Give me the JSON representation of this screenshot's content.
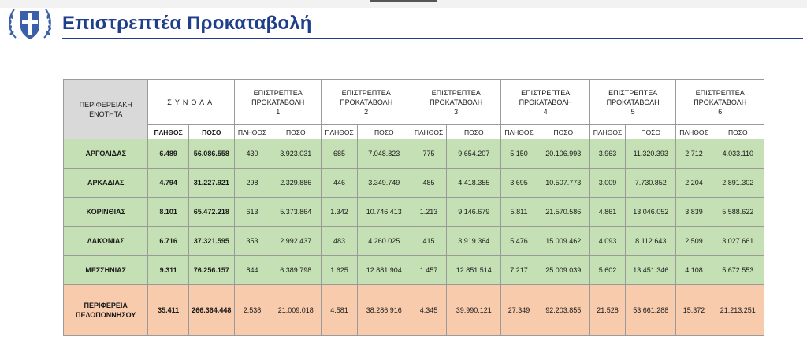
{
  "slide": {
    "title": "Επιστρεπτέα Προκαταβολή"
  },
  "table": {
    "region_header": "ΠΕΡΙΦΕΡΕΙΑΚΗ ΕΝΟΤΗΤΑ",
    "totals_header": "ΣΥΝΟΛΑ",
    "rounds": [
      {
        "label": "ΕΠΙΣΤΡΕΠΤΕΑ ΠΡΟΚΑΤΑΒΟΛΗ",
        "number": "1"
      },
      {
        "label": "ΕΠΙΣΤΡΕΠΤΕΑ ΠΡΟΚΑΤΑΒΟΛΗ",
        "number": "2"
      },
      {
        "label": "ΕΠΙΣΤΡΕΠΤΕΑ ΠΡΟΚΑΤΑΒΟΛΗ",
        "number": "3"
      },
      {
        "label": "ΕΠΙΣΤΡΕΠΤΕΑ ΠΡΟΚΑΤΑΒΟΛΗ",
        "number": "4"
      },
      {
        "label": "ΕΠΙΣΤΡΕΠΤΕΑ ΠΡΟΚΑΤΑΒΟΛΗ",
        "number": "5"
      },
      {
        "label": "ΕΠΙΣΤΡΕΠΤΕΑ ΠΡΟΚΑΤΑΒΟΛΗ",
        "number": "6"
      }
    ],
    "sub_headers": {
      "count": "ΠΛΗΘΟΣ",
      "amount": "ΠΟΣΟ"
    },
    "rows": [
      {
        "name": "ΑΡΓΟΛΙΔΑΣ",
        "values": [
          "6.489",
          "56.086.558",
          "430",
          "3.923.031",
          "685",
          "7.048.823",
          "775",
          "9.654.207",
          "5.150",
          "20.106.993",
          "3.963",
          "11.320.393",
          "2.712",
          "4.033.110"
        ]
      },
      {
        "name": "ΑΡΚΑΔΙΑΣ",
        "values": [
          "4.794",
          "31.227.921",
          "298",
          "2.329.886",
          "446",
          "3.349.749",
          "485",
          "4.418.355",
          "3.695",
          "10.507.773",
          "3.009",
          "7.730.852",
          "2.204",
          "2.891.302"
        ]
      },
      {
        "name": "ΚΟΡΙΝΘΙΑΣ",
        "values": [
          "8.101",
          "65.472.218",
          "613",
          "5.373.864",
          "1.342",
          "10.746.413",
          "1.213",
          "9.146.679",
          "5.811",
          "21.570.586",
          "4.861",
          "13.046.052",
          "3.839",
          "5.588.622"
        ]
      },
      {
        "name": "ΛΑΚΩΝΙΑΣ",
        "values": [
          "6.716",
          "37.321.595",
          "353",
          "2.992.437",
          "483",
          "4.260.025",
          "415",
          "3.919.364",
          "5.476",
          "15.009.462",
          "4.093",
          "8.112.643",
          "2.509",
          "3.027.661"
        ]
      },
      {
        "name": "ΜΕΣΣΗΝΙΑΣ",
        "values": [
          "9.311",
          "76.256.157",
          "844",
          "6.389.798",
          "1.625",
          "12.881.904",
          "1.457",
          "12.851.514",
          "7.217",
          "25.009.039",
          "5.602",
          "13.451.346",
          "4.108",
          "5.672.553"
        ]
      }
    ],
    "total_row": {
      "name": "ΠΕΡΙΦΕΡΕΙΑ ΠΕΛΟΠΟΝΝΗΣΟΥ",
      "values": [
        "35.411",
        "266.364.448",
        "2.538",
        "21.009.018",
        "4.581",
        "38.286.916",
        "4.345",
        "39.990.121",
        "27.349",
        "92.203.855",
        "21.528",
        "53.661.288",
        "15.372",
        "21.213.251"
      ]
    }
  },
  "colors": {
    "title": "#1f3f8a",
    "region_row": "#c5e0b4",
    "total_row": "#f8cbad",
    "header_gray": "#d9d9d9"
  },
  "icons": {
    "emblem": "greek-coat-of-arms-icon"
  }
}
